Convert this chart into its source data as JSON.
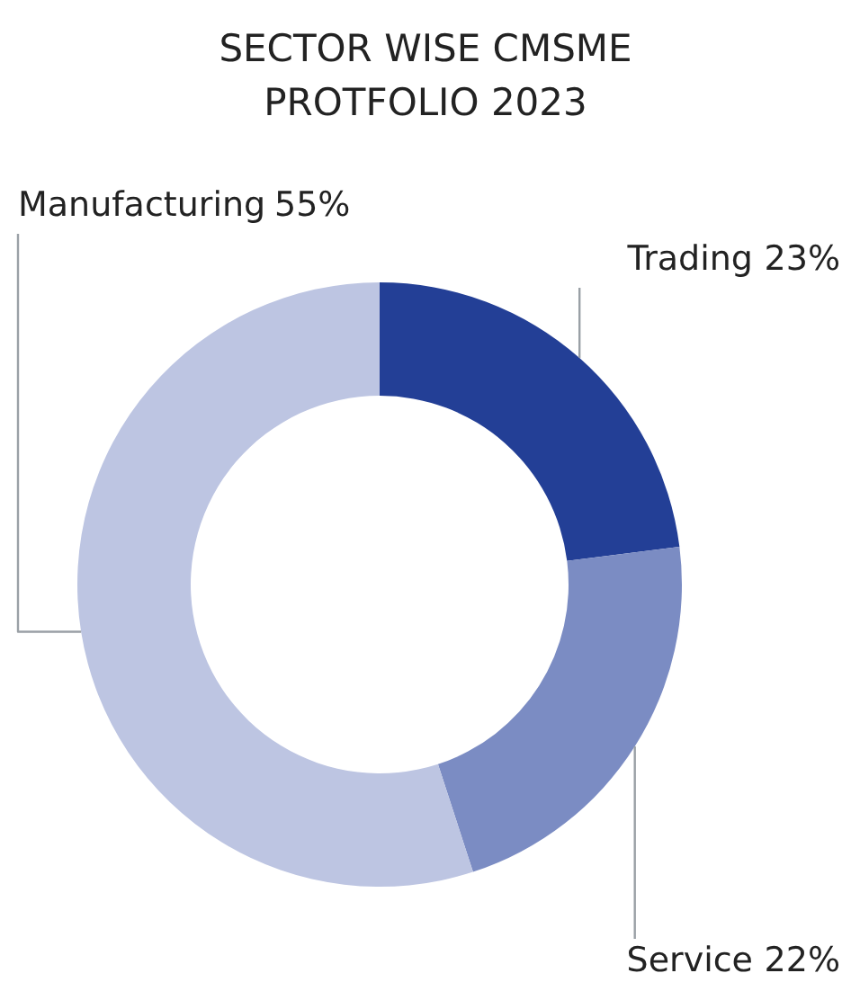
{
  "chart_data": {
    "type": "donut",
    "title": "SECTOR WISE CMSME\nPROTFOLIO 2023",
    "categories": [
      "Trading",
      "Service",
      "Manufacturing"
    ],
    "values": [
      23,
      22,
      55
    ],
    "colors": [
      "#233f96",
      "#7b8cc3",
      "#bdc5e2"
    ],
    "value_labels": [
      "23%",
      "22%",
      "55%"
    ]
  }
}
